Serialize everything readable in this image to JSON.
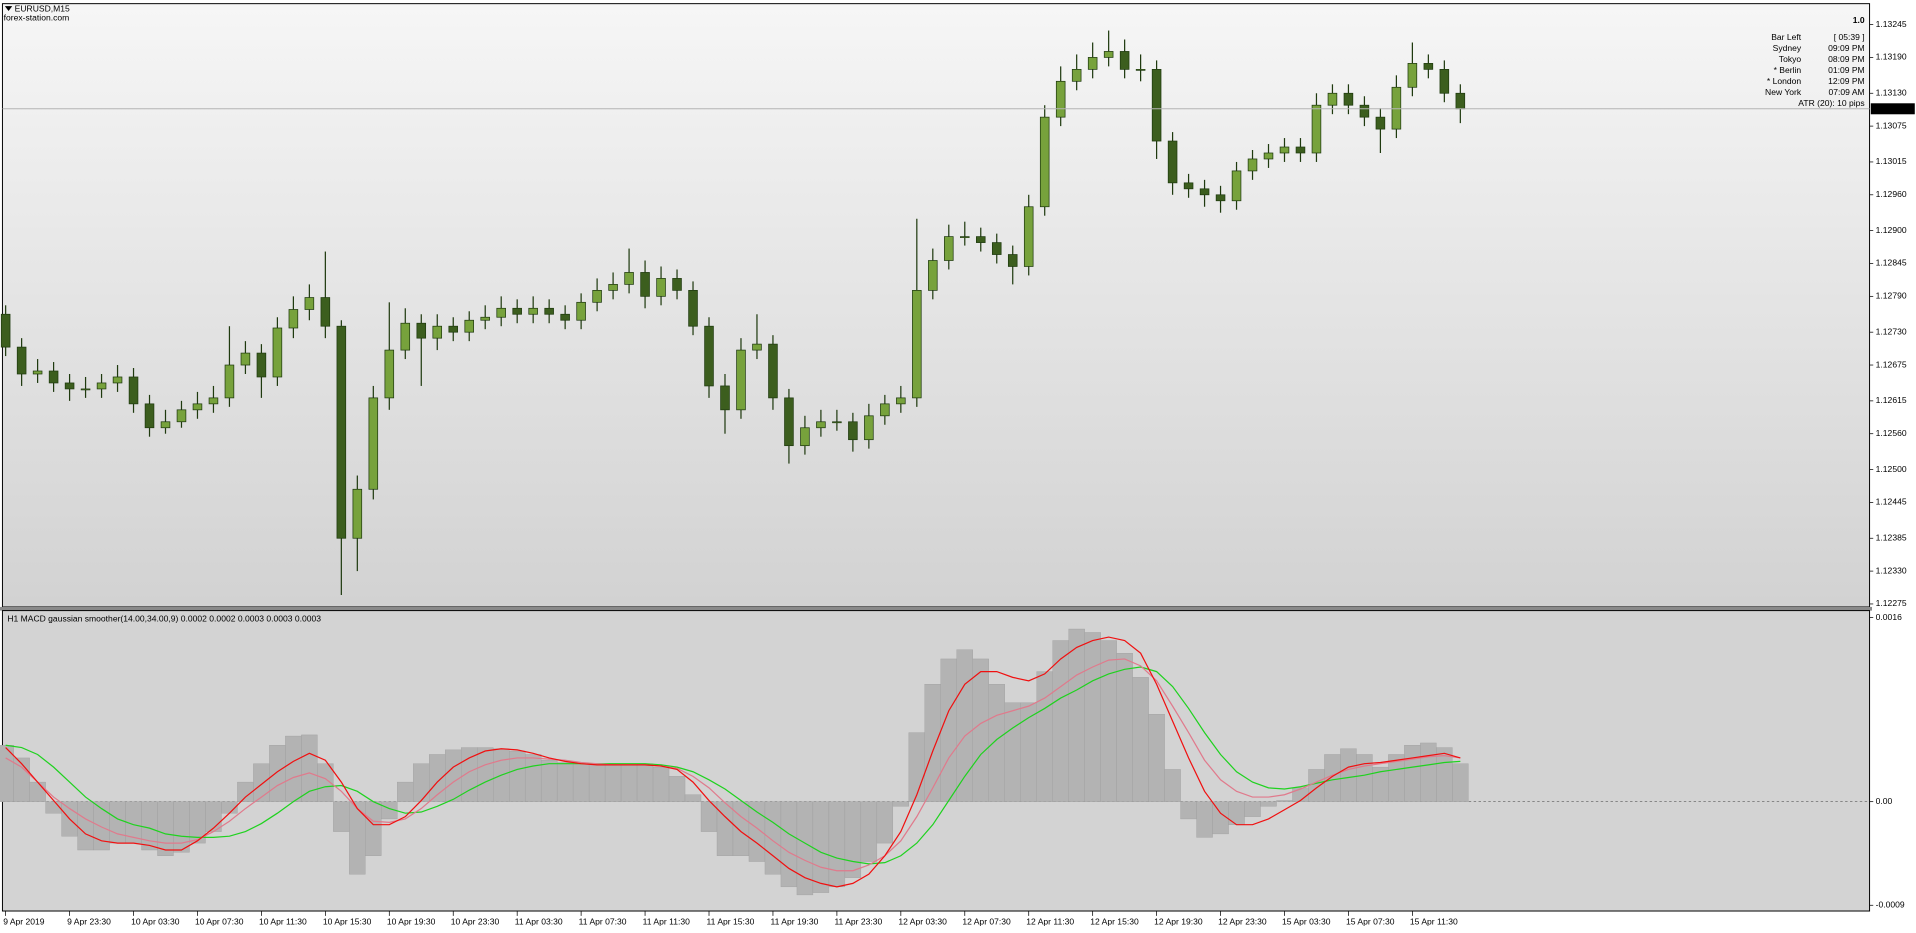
{
  "chart_data": [
    {
      "type": "candlestick",
      "title": "EURUSD,M15",
      "subtitle": "forex-station.com",
      "up_color": "#77a23c",
      "down_color": "#3c5e1e",
      "wick_color": "#1f3a0f",
      "xlim": [
        -0.2,
        116.6
      ],
      "ylim": [
        1.1227,
        1.1328
      ],
      "yticks": [
        1.13245,
        {
          "value": 1.1319,
          "label": "1.13190"
        },
        {
          "value": 1.1313,
          "label": "1.13130"
        },
        1.13075,
        1.13015,
        {
          "value": 1.1296,
          "label": "1.12960"
        },
        {
          "value": 1.129,
          "label": "1.12900"
        },
        1.12845,
        {
          "value": 1.1279,
          "label": "1.12790"
        },
        {
          "value": 1.1273,
          "label": "1.12730"
        },
        1.12675,
        1.12615,
        {
          "value": 1.1256,
          "label": "1.12560"
        },
        {
          "value": 1.125,
          "label": "1.12500"
        },
        1.12445,
        1.12385,
        {
          "value": 1.1233,
          "label": "1.12330"
        },
        1.12275
      ],
      "last_price": 1.13104,
      "open": [
        1.1276,
        1.12705,
        1.1266,
        1.12665,
        1.12645,
        1.12635,
        1.12635,
        1.12645,
        1.12655,
        1.1261,
        1.1257,
        1.1258,
        1.126,
        1.1261,
        1.1262,
        1.12675,
        1.12695,
        1.12655,
        1.12737,
        1.12768,
        1.12788,
        1.1274,
        1.12385,
        1.12467,
        1.1262,
        1.127,
        1.12745,
        1.1272,
        1.1274,
        1.1273,
        1.1275,
        1.12755,
        1.1277,
        1.1276,
        1.1277,
        1.1276,
        1.1275,
        1.1278,
        1.128,
        1.1281,
        1.1283,
        1.1279,
        1.1282,
        1.128,
        1.1274,
        1.1264,
        1.126,
        1.127,
        1.1271,
        1.1262,
        1.1254,
        1.1257,
        1.1258,
        1.1258,
        1.1255,
        1.1259,
        1.1261,
        1.1262,
        1.128,
        1.1285,
        1.1289,
        1.1289,
        1.1288,
        1.1286,
        1.1284,
        1.1294,
        1.1309,
        1.1315,
        1.1317,
        1.1319,
        1.132,
        1.1317,
        1.1317,
        1.1305,
        1.1298,
        1.1297,
        1.1296,
        1.1295,
        1.13,
        1.1302,
        1.1303,
        1.1304,
        1.1303,
        1.1311,
        1.1313,
        1.1311,
        1.1309,
        1.1307,
        1.1314,
        1.1318,
        1.1317,
        1.1313
      ],
      "high": [
        1.12775,
        1.1272,
        1.12685,
        1.1268,
        1.1266,
        1.12655,
        1.1266,
        1.12675,
        1.1267,
        1.12625,
        1.126,
        1.12615,
        1.1263,
        1.1264,
        1.1274,
        1.12715,
        1.1271,
        1.12755,
        1.1279,
        1.1281,
        1.12865,
        1.1275,
        1.1249,
        1.1264,
        1.1278,
        1.1277,
        1.1276,
        1.1276,
        1.12755,
        1.12765,
        1.12775,
        1.1279,
        1.12785,
        1.1279,
        1.12785,
        1.12775,
        1.12795,
        1.1282,
        1.1283,
        1.1287,
        1.1285,
        1.1284,
        1.12835,
        1.12815,
        1.12755,
        1.1266,
        1.1272,
        1.1276,
        1.12725,
        1.12635,
        1.1259,
        1.126,
        1.126,
        1.12595,
        1.1261,
        1.12625,
        1.1264,
        1.1292,
        1.1287,
        1.1291,
        1.12915,
        1.12905,
        1.12895,
        1.12875,
        1.1296,
        1.1311,
        1.13175,
        1.13195,
        1.13215,
        1.13235,
        1.1322,
        1.13195,
        1.13185,
        1.13065,
        1.12995,
        1.12985,
        1.12975,
        1.13015,
        1.13035,
        1.13045,
        1.13055,
        1.13055,
        1.1313,
        1.13145,
        1.13145,
        1.13125,
        1.13105,
        1.1316,
        1.13215,
        1.13195,
        1.13185,
        1.13145
      ],
      "low": [
        1.1269,
        1.1264,
        1.12645,
        1.1263,
        1.12615,
        1.1262,
        1.1262,
        1.1263,
        1.12595,
        1.12555,
        1.1256,
        1.1257,
        1.12585,
        1.12595,
        1.12605,
        1.1266,
        1.1262,
        1.1264,
        1.1272,
        1.1275,
        1.1272,
        1.1229,
        1.1233,
        1.1245,
        1.126,
        1.12685,
        1.1264,
        1.127,
        1.12715,
        1.12715,
        1.12735,
        1.1274,
        1.12745,
        1.12745,
        1.12745,
        1.12735,
        1.12735,
        1.12765,
        1.12785,
        1.12795,
        1.1277,
        1.12775,
        1.12785,
        1.12725,
        1.1262,
        1.1256,
        1.12585,
        1.12685,
        1.126,
        1.1251,
        1.12525,
        1.12555,
        1.12565,
        1.1253,
        1.12535,
        1.12575,
        1.12595,
        1.12605,
        1.12785,
        1.12835,
        1.12875,
        1.12865,
        1.12845,
        1.1281,
        1.12825,
        1.12925,
        1.13075,
        1.13135,
        1.13155,
        1.13175,
        1.13155,
        1.1315,
        1.1302,
        1.1296,
        1.12955,
        1.1294,
        1.1293,
        1.12935,
        1.12985,
        1.13005,
        1.13015,
        1.13015,
        1.13015,
        1.13095,
        1.13095,
        1.13075,
        1.1303,
        1.13055,
        1.13125,
        1.13155,
        1.13115,
        1.1308
      ],
      "close": [
        1.12705,
        1.1266,
        1.12665,
        1.12645,
        1.12635,
        1.12635,
        1.12645,
        1.12655,
        1.1261,
        1.1257,
        1.1258,
        1.126,
        1.1261,
        1.1262,
        1.12675,
        1.12695,
        1.12655,
        1.12737,
        1.12768,
        1.12788,
        1.1274,
        1.12385,
        1.12467,
        1.1262,
        1.127,
        1.12745,
        1.1272,
        1.1274,
        1.1273,
        1.1275,
        1.12755,
        1.1277,
        1.1276,
        1.1277,
        1.1276,
        1.1275,
        1.1278,
        1.128,
        1.1281,
        1.1283,
        1.1279,
        1.1282,
        1.128,
        1.1274,
        1.1264,
        1.126,
        1.127,
        1.1271,
        1.1262,
        1.1254,
        1.1257,
        1.1258,
        1.1258,
        1.1255,
        1.1259,
        1.1261,
        1.1262,
        1.128,
        1.1285,
        1.1289,
        1.1289,
        1.1288,
        1.1286,
        1.1284,
        1.1294,
        1.1309,
        1.1315,
        1.1317,
        1.1319,
        1.132,
        1.1317,
        1.1317,
        1.1305,
        1.1298,
        1.1297,
        1.1296,
        1.1295,
        1.13,
        1.1302,
        1.1303,
        1.1304,
        1.1303,
        1.1311,
        1.1313,
        1.1311,
        1.1309,
        1.1307,
        1.1314,
        1.1318,
        1.1317,
        1.1313,
        1.13104
      ]
    },
    {
      "type": "macd",
      "title": "H1 MACD gaussian smoother(14.00,34.00,9) 0.0002 0.0002 0.0003 0.0003 0.0003",
      "xlim": [
        -0.2,
        116.6
      ],
      "ylim": [
        -0.00095,
        0.00166
      ],
      "yticks": [
        0.0016,
        {
          "value": 0,
          "label": "0.00"
        },
        -0.0009
      ],
      "zero_line": true,
      "xticks": [
        {
          "value": 0,
          "label": "9 Apr 2019"
        },
        {
          "value": 4,
          "label": "9 Apr 23:30"
        },
        {
          "value": 8,
          "label": "10 Apr 03:30"
        },
        {
          "value": 12,
          "label": "10 Apr 07:30"
        },
        {
          "value": 16,
          "label": "10 Apr 11:30"
        },
        {
          "value": 20,
          "label": "10 Apr 15:30"
        },
        {
          "value": 24,
          "label": "10 Apr 19:30"
        },
        {
          "value": 28,
          "label": "10 Apr 23:30"
        },
        {
          "value": 32,
          "label": "11 Apr 03:30"
        },
        {
          "value": 36,
          "label": "11 Apr 07:30"
        },
        {
          "value": 40,
          "label": "11 Apr 11:30"
        },
        {
          "value": 44,
          "label": "11 Apr 15:30"
        },
        {
          "value": 48,
          "label": "11 Apr 19:30"
        },
        {
          "value": 52,
          "label": "11 Apr 23:30"
        },
        {
          "value": 56,
          "label": "12 Apr 03:30"
        },
        {
          "value": 60,
          "label": "12 Apr 07:30"
        },
        {
          "value": 64,
          "label": "12 Apr 11:30"
        },
        {
          "value": 68,
          "label": "12 Apr 15:30"
        },
        {
          "value": 72,
          "label": "12 Apr 19:30"
        },
        {
          "value": 76,
          "label": "12 Apr 23:30"
        },
        {
          "value": 80,
          "label": "15 Apr 03:30"
        },
        {
          "value": 84,
          "label": "15 Apr 07:30"
        },
        {
          "value": 88,
          "label": "15 Apr 11:30"
        }
      ],
      "series": [
        {
          "style": "histogram",
          "color": "#b3b3b3",
          "values": [
            0.00049,
            0.00038,
            0.00017,
            -0.0001,
            -0.0003,
            -0.00042,
            -0.00042,
            -0.00036,
            -0.00036,
            -0.00042,
            -0.00047,
            -0.00044,
            -0.00036,
            -0.00026,
            -0.0001,
            0.00017,
            0.00033,
            0.00049,
            0.00057,
            0.00058,
            0.00033,
            -0.00026,
            -0.00063,
            -0.00047,
            -0.00015,
            0.00017,
            0.00033,
            0.00041,
            0.00045,
            0.00047,
            0.00047,
            0.00046,
            0.00044,
            0.00041,
            0.00036,
            0.00034,
            0.00033,
            0.00033,
            0.00032,
            0.00032,
            0.00033,
            0.0003,
            0.00022,
            6e-05,
            -0.00026,
            -0.00047,
            -0.00047,
            -0.00052,
            -0.00063,
            -0.00074,
            -0.00081,
            -0.00079,
            -0.00074,
            -0.00066,
            -0.00052,
            -0.00036,
            -4e-05,
            0.0006,
            0.00102,
            0.00124,
            0.00132,
            0.00124,
            0.00102,
            0.00086,
            0.00086,
            0.00113,
            0.0014,
            0.0015,
            0.00147,
            0.0014,
            0.00129,
            0.00108,
            0.00076,
            0.00028,
            -0.00015,
            -0.00031,
            -0.00028,
            -0.0002,
            -0.00013,
            -4e-05,
            1e-05,
            0.00012,
            0.00028,
            0.00041,
            0.00046,
            0.00041,
            0.0003,
            0.00041,
            0.00049,
            0.00051,
            0.00047,
            0.00033
          ]
        },
        {
          "style": "line",
          "color": "#1fd21f",
          "values": [
            0.00049,
            0.00047,
            0.00041,
            0.0003,
            0.00017,
            4e-05,
            -6e-05,
            -0.00015,
            -0.0002,
            -0.00023,
            -0.00028,
            -0.0003,
            -0.00031,
            -0.00031,
            -0.0003,
            -0.00026,
            -0.00019,
            -0.0001,
            0,
            9e-05,
            0.00013,
            0.00014,
            9e-05,
            0,
            -6e-05,
            -0.0001,
            -9e-05,
            -4e-05,
            2e-05,
            0.0001,
            0.00017,
            0.00023,
            0.00028,
            0.00031,
            0.00033,
            0.00033,
            0.00033,
            0.00033,
            0.00033,
            0.00033,
            0.00033,
            0.00032,
            0.0003,
            0.00026,
            0.00019,
            0.00011,
            1e-05,
            -9e-05,
            -0.00018,
            -0.00028,
            -0.00036,
            -0.00044,
            -0.00049,
            -0.00052,
            -0.00054,
            -0.00053,
            -0.00047,
            -0.00036,
            -0.0002,
            1e-05,
            0.00022,
            0.00041,
            0.00054,
            0.00064,
            0.00073,
            0.00081,
            0.0009,
            0.00097,
            0.00105,
            0.00111,
            0.00115,
            0.00117,
            0.00113,
            0.001,
            0.00081,
            0.0006,
            0.00041,
            0.00026,
            0.00017,
            0.00012,
            0.00011,
            0.00013,
            0.00016,
            0.00019,
            0.00021,
            0.00023,
            0.00026,
            0.00028,
            0.0003,
            0.00032,
            0.00034,
            0.00035
          ]
        },
        {
          "style": "line",
          "color": "#e07a8c",
          "values": [
            0.00038,
            0.0003,
            0.00017,
            4e-05,
            -6e-05,
            -0.00015,
            -0.00022,
            -0.00028,
            -0.00031,
            -0.00034,
            -0.00036,
            -0.00036,
            -0.00033,
            -0.00026,
            -0.00017,
            -6e-05,
            4e-05,
            0.00014,
            0.00021,
            0.00025,
            0.0002,
            9e-05,
            -6e-05,
            -0.00017,
            -0.00018,
            -0.00015,
            -6e-05,
            6e-05,
            0.00017,
            0.00026,
            0.00032,
            0.00036,
            0.00038,
            0.00038,
            0.00037,
            0.00036,
            0.00034,
            0.00033,
            0.00032,
            0.00032,
            0.00032,
            0.00031,
            0.00029,
            0.00022,
            0.00012,
            -1e-05,
            -0.00013,
            -0.00023,
            -0.00034,
            -0.00044,
            -0.00051,
            -0.00057,
            -0.0006,
            -0.0006,
            -0.00055,
            -0.00047,
            -0.00034,
            -0.00013,
            0.00012,
            0.00038,
            0.00057,
            0.00068,
            0.00075,
            0.00079,
            0.00083,
            0.0009,
            0.001,
            0.0011,
            0.00117,
            0.00123,
            0.00124,
            0.00118,
            0.00105,
            0.00083,
            0.0006,
            0.00036,
            0.00019,
            9e-05,
            4e-05,
            4e-05,
            6e-05,
            0.00011,
            0.00017,
            0.00023,
            0.00028,
            0.00031,
            0.00033,
            0.00035,
            0.00037,
            0.00039,
            0.0004,
            0.00038
          ]
        },
        {
          "style": "line",
          "color": "#f01010",
          "values": [
            0.00047,
            0.00033,
            0.00017,
            1e-05,
            -0.00015,
            -0.00028,
            -0.00034,
            -0.00036,
            -0.00036,
            -0.00038,
            -0.00042,
            -0.00042,
            -0.00034,
            -0.00023,
            -0.0001,
            4e-05,
            0.00015,
            0.00026,
            0.00035,
            0.00042,
            0.00036,
            0.00017,
            -6e-05,
            -0.0002,
            -0.0002,
            -0.00013,
            1e-05,
            0.00017,
            0.0003,
            0.00038,
            0.00044,
            0.00046,
            0.00045,
            0.00042,
            0.00038,
            0.00035,
            0.00033,
            0.00032,
            0.00032,
            0.00032,
            0.00032,
            0.00031,
            0.00028,
            0.00017,
            1e-05,
            -0.00013,
            -0.00026,
            -0.00036,
            -0.00047,
            -0.00058,
            -0.00066,
            -0.00071,
            -0.00074,
            -0.00071,
            -0.00063,
            -0.00047,
            -0.00026,
            6e-05,
            0.00044,
            0.00079,
            0.00102,
            0.00113,
            0.00113,
            0.00108,
            0.00105,
            0.00111,
            0.00124,
            0.00134,
            0.0014,
            0.00143,
            0.0014,
            0.00129,
            0.00102,
            0.0007,
            0.00038,
            9e-05,
            -0.0001,
            -0.0002,
            -0.0002,
            -0.00015,
            -7e-05,
            1e-05,
            0.00012,
            0.00022,
            0.0003,
            0.00033,
            0.00034,
            0.00036,
            0.00038,
            0.0004,
            0.00042,
            0.00038
          ]
        }
      ]
    }
  ],
  "info_panel": {
    "headline": "1.0",
    "rows": [
      {
        "label": "Bar Left",
        "value": "[ 05:39 ]",
        "color": "#a3a3a3"
      },
      {
        "label": "Sydney",
        "value": "09:09 PM",
        "color": "#a3a3a3"
      },
      {
        "label": "Tokyo",
        "value": "08:09 PM",
        "color": "#a3a3a3"
      },
      {
        "label": "* Berlin",
        "value": "01:09 PM",
        "color": "#ff1e1e"
      },
      {
        "label": "* London",
        "value": "12:09 PM",
        "color": "#ff1e1e"
      },
      {
        "label": "New York",
        "value": "07:09 AM",
        "color": "#a3a3a3"
      }
    ],
    "footer": "ATR (20): 10 pips"
  }
}
